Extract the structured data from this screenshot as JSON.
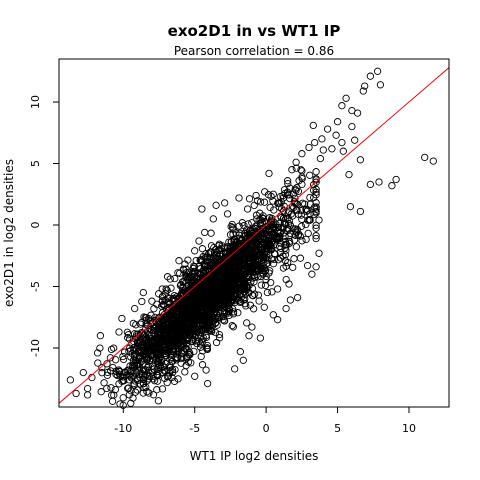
{
  "chart_data": {
    "type": "scatter",
    "title": "exo2D1 in vs WT1 IP",
    "subtitle": "Pearson correlation =  0.86",
    "xlabel": "WT1 IP log2 densities",
    "ylabel": "exo2D1 in log2 densities",
    "xlim": [
      -14.5,
      12.8
    ],
    "ylim": [
      -14.8,
      13.5
    ],
    "xticks": [
      -10,
      -5,
      0,
      5,
      10
    ],
    "yticks": [
      -10,
      -5,
      0,
      5,
      10
    ],
    "grid": false,
    "point_style": "open-circle",
    "point_color": "#000000",
    "reference_line": {
      "slope": 1,
      "intercept": 0,
      "color": "#ff0000"
    },
    "cloud": {
      "count": 2600,
      "x_mean": -4.0,
      "x_sd": 3.0,
      "slope": 1.05,
      "intercept": -1.5,
      "resid_sd": 1.6,
      "x_min": -12.5,
      "x_max": 3.5,
      "seed": 7
    },
    "points": [
      [
        7.8,
        12.5
      ],
      [
        7.3,
        12.1
      ],
      [
        8.0,
        11.4
      ],
      [
        6.9,
        11.3
      ],
      [
        6.8,
        10.9
      ],
      [
        5.6,
        10.3
      ],
      [
        5.3,
        9.7
      ],
      [
        6.0,
        9.3
      ],
      [
        6.4,
        9.1
      ],
      [
        5.0,
        8.4
      ],
      [
        6.0,
        8.0
      ],
      [
        3.3,
        8.1
      ],
      [
        4.3,
        7.8
      ],
      [
        4.9,
        7.3
      ],
      [
        3.9,
        7.0
      ],
      [
        3.4,
        6.7
      ],
      [
        5.3,
        6.7
      ],
      [
        6.2,
        6.9
      ],
      [
        4.0,
        6.1
      ],
      [
        4.6,
        6.2
      ],
      [
        5.4,
        6.0
      ],
      [
        3.0,
        6.3
      ],
      [
        2.5,
        5.8
      ],
      [
        3.8,
        5.4
      ],
      [
        2.1,
        5.1
      ],
      [
        2.5,
        4.4
      ],
      [
        1.8,
        4.5
      ],
      [
        0.2,
        4.2
      ],
      [
        1.5,
        3.6
      ],
      [
        2.5,
        3.3
      ],
      [
        11.1,
        5.5
      ],
      [
        11.7,
        5.2
      ],
      [
        6.6,
        5.3
      ],
      [
        5.8,
        4.1
      ],
      [
        7.9,
        3.5
      ],
      [
        7.3,
        3.3
      ],
      [
        9.1,
        3.7
      ],
      [
        8.8,
        3.2
      ],
      [
        5.9,
        1.5
      ],
      [
        6.6,
        1.1
      ],
      [
        3.7,
        0.4
      ],
      [
        2.7,
        1.7
      ],
      [
        3.5,
        -1.1
      ],
      [
        3.7,
        -2.3
      ],
      [
        3.5,
        -3.4
      ],
      [
        3.2,
        -4.0
      ],
      [
        2.2,
        -5.9
      ],
      [
        1.7,
        -6.1
      ],
      [
        0.8,
        -7.7
      ],
      [
        -1.0,
        -8.3
      ],
      [
        -1.8,
        -10.3
      ],
      [
        -1.6,
        -11.0
      ],
      [
        -2.2,
        -11.7
      ],
      [
        -4.2,
        -11.8
      ],
      [
        -4.1,
        -12.9
      ],
      [
        -5.0,
        -12.3
      ],
      [
        -6.6,
        -12.4
      ],
      [
        -7.6,
        -12.7
      ],
      [
        -8.6,
        -12.9
      ],
      [
        -8.9,
        -12.1
      ],
      [
        -9.6,
        -11.8
      ],
      [
        -10.3,
        -11.9
      ],
      [
        -11.5,
        -11.6
      ],
      [
        -12.2,
        -12.4
      ],
      [
        -12.8,
        -12.0
      ],
      [
        -13.7,
        -12.6
      ],
      [
        -13.3,
        -13.7
      ],
      [
        -12.5,
        -13.3
      ],
      [
        -11.8,
        -10.4
      ],
      [
        -10.9,
        -10.8
      ],
      [
        -11.6,
        -9.0
      ],
      [
        -10.3,
        -8.7
      ],
      [
        -9.3,
        -8.0
      ],
      [
        -10.1,
        -7.6
      ],
      [
        -9.2,
        -6.8
      ],
      [
        -8.0,
        -6.2
      ],
      [
        -8.6,
        -5.5
      ],
      [
        -7.0,
        -5.2
      ],
      [
        -6.9,
        -4.2
      ],
      [
        -5.8,
        -3.6
      ],
      [
        -6.1,
        -2.9
      ],
      [
        -5.0,
        -2.1
      ],
      [
        -4.7,
        -1.3
      ],
      [
        -4.3,
        -0.6
      ],
      [
        -3.7,
        0.5
      ],
      [
        -2.7,
        0.9
      ],
      [
        -2.9,
        1.8
      ],
      [
        -1.9,
        2.2
      ],
      [
        -1.3,
        1.3
      ],
      [
        -0.7,
        2.4
      ],
      [
        -0.1,
        2.7
      ],
      [
        0.5,
        2.5
      ],
      [
        1.2,
        2.2
      ],
      [
        -4.5,
        1.3
      ],
      [
        -3.5,
        1.6
      ],
      [
        2.4,
        -2.7
      ],
      [
        2.9,
        -3.3
      ],
      [
        1.6,
        -4.8
      ],
      [
        0.8,
        -5.2
      ],
      [
        1.4,
        -6.8
      ],
      [
        0.5,
        -7.3
      ],
      [
        -0.4,
        -9.2
      ],
      [
        -1.2,
        -9.0
      ]
    ]
  }
}
